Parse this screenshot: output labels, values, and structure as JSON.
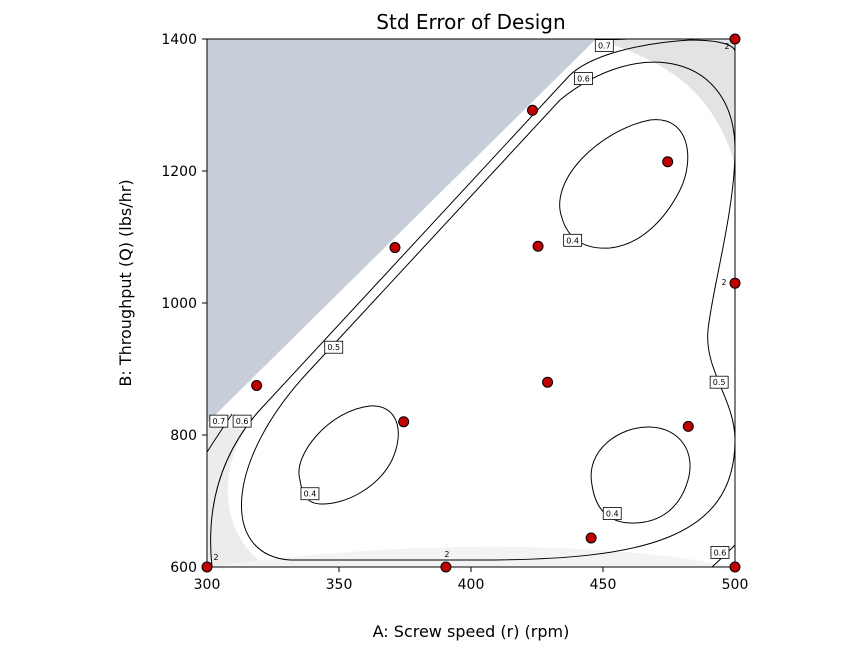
{
  "chart_data": {
    "type": "contour",
    "title": "Std Error of Design",
    "xlabel": "A: Screw speed (r) (rpm)",
    "ylabel": "B: Throughput (Q) (lbs/hr)",
    "xlim": [
      300,
      500
    ],
    "ylim": [
      600,
      1400
    ],
    "xticks": [
      300,
      350,
      400,
      450,
      500
    ],
    "yticks": [
      600,
      800,
      1000,
      1200,
      1400
    ],
    "excluded_region_color": "#c8ced9",
    "point_color": "#c00000",
    "design_points": [
      {
        "x": 300,
        "y": 600,
        "count": "2"
      },
      {
        "x": 390.5,
        "y": 600,
        "count": "2"
      },
      {
        "x": 500,
        "y": 600
      },
      {
        "x": 500,
        "y": 1400,
        "count": "2"
      },
      {
        "x": 500,
        "y": 1030,
        "count": "2"
      },
      {
        "x": 318.8,
        "y": 875
      },
      {
        "x": 371.2,
        "y": 1084
      },
      {
        "x": 423.3,
        "y": 1292
      },
      {
        "x": 474.5,
        "y": 1214
      },
      {
        "x": 425.4,
        "y": 1086
      },
      {
        "x": 429,
        "y": 880
      },
      {
        "x": 374.5,
        "y": 820
      },
      {
        "x": 482.3,
        "y": 813
      },
      {
        "x": 445.5,
        "y": 644
      }
    ],
    "contour_labels": [
      {
        "text": "0.7",
        "x": 450.5,
        "y": 1390
      },
      {
        "text": "0.6",
        "x": 442.6,
        "y": 1340
      },
      {
        "text": "0.4",
        "x": 438.5,
        "y": 1095
      },
      {
        "text": "0.5",
        "x": 348,
        "y": 933
      },
      {
        "text": "0.7",
        "x": 304.5,
        "y": 821
      },
      {
        "text": "0.6",
        "x": 313.3,
        "y": 821
      },
      {
        "text": "0.5",
        "x": 494,
        "y": 880
      },
      {
        "text": "0.4",
        "x": 339,
        "y": 711
      },
      {
        "text": "0.4",
        "x": 453.5,
        "y": 681
      },
      {
        "text": "0.6",
        "x": 494.3,
        "y": 622
      }
    ]
  }
}
